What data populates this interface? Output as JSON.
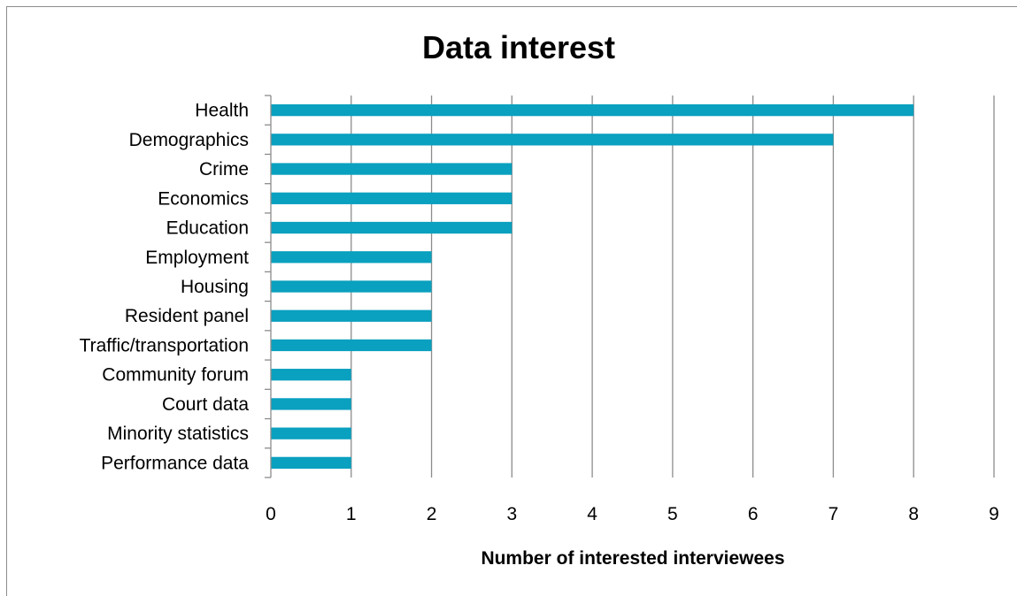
{
  "chart_data": {
    "type": "bar",
    "orientation": "horizontal",
    "title": "Data interest",
    "xlabel": "Number of interested interviewees",
    "ylabel": "",
    "categories": [
      "Health",
      "Demographics",
      "Crime",
      "Economics",
      "Education",
      "Employment",
      "Housing",
      "Resident panel",
      "Traffic/transportation",
      "Community forum",
      "Court data",
      "Minority statistics",
      "Performance data"
    ],
    "values": [
      8,
      7,
      3,
      3,
      3,
      2,
      2,
      2,
      2,
      1,
      1,
      1,
      1
    ],
    "xlim": [
      0,
      9
    ],
    "xticks": [
      "0",
      "1",
      "2",
      "3",
      "4",
      "5",
      "6",
      "7",
      "8",
      "9"
    ],
    "grid": "vertical",
    "legend": "none",
    "bar_color": "#0aa0bf",
    "grid_color": "#8c8c8c"
  }
}
